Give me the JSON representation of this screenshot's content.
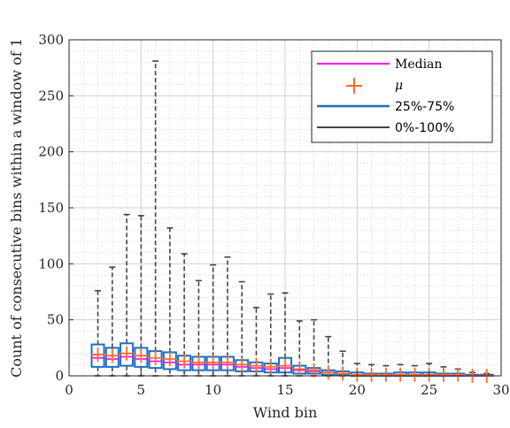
{
  "chart_data": {
    "type": "box",
    "xlabel": "Wind bin",
    "ylabel": "Count of consecutive bins within a window of 1",
    "xlim": [
      0,
      30
    ],
    "ylim": [
      0,
      300
    ],
    "xticks": [
      0,
      5,
      10,
      15,
      20,
      25,
      30
    ],
    "yticks": [
      0,
      50,
      100,
      150,
      200,
      250,
      300
    ],
    "grid": true,
    "minor_grid": true,
    "legend_position": "top-right",
    "legend": [
      {
        "label": "Median",
        "kind": "line",
        "color": "#ff00ff"
      },
      {
        "label": "μ",
        "kind": "plus",
        "color": "#ff6a2a"
      },
      {
        "label": "25%-75%",
        "kind": "line",
        "color": "#1f6fc5"
      },
      {
        "label": "0%-100%",
        "kind": "line",
        "color": "#444444"
      }
    ],
    "colors": {
      "median": "#ff00ff",
      "mean": "#ff6a2a",
      "box": "#1f6fc5",
      "whisker": "#444444"
    },
    "bins": [
      {
        "x": 2,
        "min": 0,
        "q1": 8,
        "median": 16,
        "q3": 28,
        "max": 76,
        "mean": 19
      },
      {
        "x": 3,
        "min": 0,
        "q1": 8,
        "median": 15,
        "q3": 25,
        "max": 97,
        "mean": 18
      },
      {
        "x": 4,
        "min": 0,
        "q1": 9,
        "median": 17,
        "q3": 29,
        "max": 144,
        "mean": 20
      },
      {
        "x": 5,
        "min": 0,
        "q1": 8,
        "median": 15,
        "q3": 25,
        "max": 143,
        "mean": 18
      },
      {
        "x": 6,
        "min": 0,
        "q1": 7,
        "median": 13,
        "q3": 22,
        "max": 281,
        "mean": 16
      },
      {
        "x": 7,
        "min": 0,
        "q1": 6,
        "median": 12,
        "q3": 21,
        "max": 132,
        "mean": 15
      },
      {
        "x": 8,
        "min": 0,
        "q1": 5,
        "median": 10,
        "q3": 18,
        "max": 109,
        "mean": 13
      },
      {
        "x": 9,
        "min": 0,
        "q1": 5,
        "median": 10,
        "q3": 17,
        "max": 85,
        "mean": 12
      },
      {
        "x": 10,
        "min": 0,
        "q1": 5,
        "median": 10,
        "q3": 17,
        "max": 99,
        "mean": 12
      },
      {
        "x": 11,
        "min": 0,
        "q1": 5,
        "median": 10,
        "q3": 17,
        "max": 106,
        "mean": 12
      },
      {
        "x": 12,
        "min": 0,
        "q1": 4,
        "median": 8,
        "q3": 14,
        "max": 84,
        "mean": 10
      },
      {
        "x": 13,
        "min": 0,
        "q1": 4,
        "median": 7,
        "q3": 12,
        "max": 61,
        "mean": 9
      },
      {
        "x": 14,
        "min": 0,
        "q1": 3,
        "median": 6,
        "q3": 11,
        "max": 73,
        "mean": 8
      },
      {
        "x": 15,
        "min": 0,
        "q1": 3,
        "median": 7,
        "q3": 16,
        "max": 74,
        "mean": 9
      },
      {
        "x": 16,
        "min": 0,
        "q1": 2,
        "median": 5,
        "q3": 9,
        "max": 49,
        "mean": 6
      },
      {
        "x": 17,
        "min": 0,
        "q1": 2,
        "median": 4,
        "q3": 7,
        "max": 50,
        "mean": 5
      },
      {
        "x": 18,
        "min": 0,
        "q1": 1,
        "median": 3,
        "q3": 5,
        "max": 35,
        "mean": 3
      },
      {
        "x": 19,
        "min": 0,
        "q1": 1,
        "median": 2,
        "q3": 4,
        "max": 22,
        "mean": 2
      },
      {
        "x": 20,
        "min": 0,
        "q1": 0,
        "median": 1,
        "q3": 3,
        "max": 11,
        "mean": 1
      },
      {
        "x": 21,
        "min": 0,
        "q1": 0,
        "median": 1,
        "q3": 2,
        "max": 10,
        "mean": 1
      },
      {
        "x": 22,
        "min": 0,
        "q1": 0,
        "median": 1,
        "q3": 2,
        "max": 9,
        "mean": 1
      },
      {
        "x": 23,
        "min": 0,
        "q1": 0,
        "median": 1,
        "q3": 3,
        "max": 10,
        "mean": 1
      },
      {
        "x": 24,
        "min": 0,
        "q1": 0,
        "median": 1,
        "q3": 3,
        "max": 9,
        "mean": 1
      },
      {
        "x": 25,
        "min": 0,
        "q1": 0,
        "median": 1,
        "q3": 3,
        "max": 11,
        "mean": 1
      },
      {
        "x": 26,
        "min": 0,
        "q1": 0,
        "median": 1,
        "q3": 2,
        "max": 8,
        "mean": 1
      },
      {
        "x": 27,
        "min": 0,
        "q1": 0,
        "median": 1,
        "q3": 2,
        "max": 6,
        "mean": 1
      },
      {
        "x": 28,
        "min": 0,
        "q1": 0,
        "median": 0,
        "q3": 1,
        "max": 3,
        "mean": 0
      },
      {
        "x": 29,
        "min": 0,
        "q1": 0,
        "median": 0,
        "q3": 1,
        "max": 2,
        "mean": 0
      }
    ]
  }
}
